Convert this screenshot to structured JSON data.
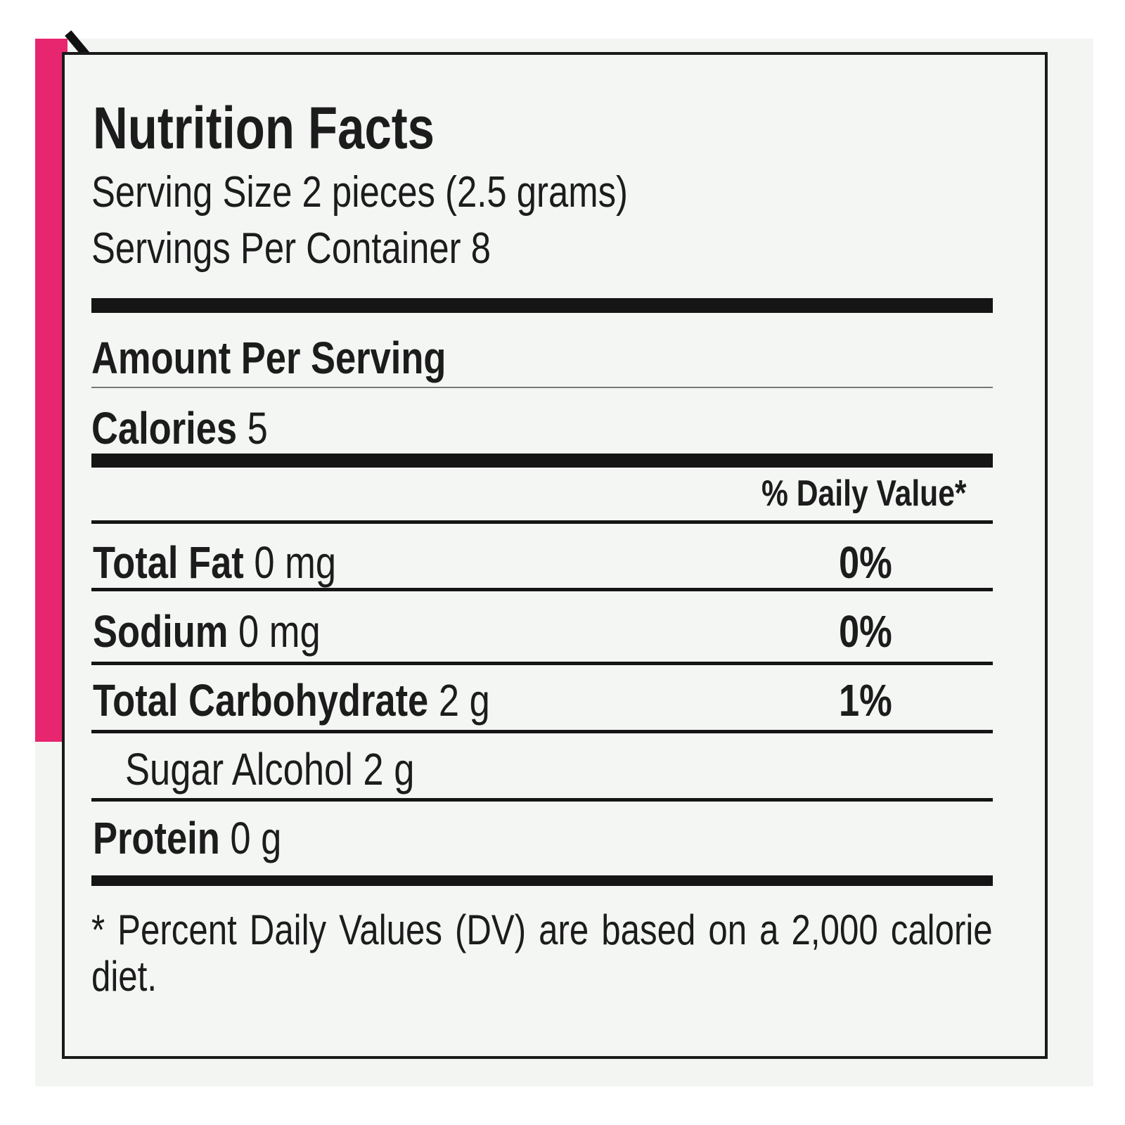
{
  "header": {
    "title": "Nutrition Facts",
    "serving_size": "Serving Size 2 pieces (2.5 grams)",
    "servings_per_container": "Servings Per Container 8"
  },
  "amount_per_serving": "Amount Per Serving",
  "calories": {
    "label": "Calories",
    "value": "5"
  },
  "daily_value_header": "% Daily Value*",
  "nutrients": [
    {
      "name": "Total Fat",
      "amount": "0 mg",
      "dv": "0%"
    },
    {
      "name": "Sodium",
      "amount": "0 mg",
      "dv": "0%"
    },
    {
      "name": "Total Carbohydrate",
      "amount": "2 g",
      "dv": "1%"
    },
    {
      "name": "Sugar Alcohol",
      "amount": "2 g"
    },
    {
      "name": "Protein",
      "amount": "0 g"
    }
  ],
  "footnote": "* Percent Daily Values (DV) are based on a 2,000 calorie diet."
}
